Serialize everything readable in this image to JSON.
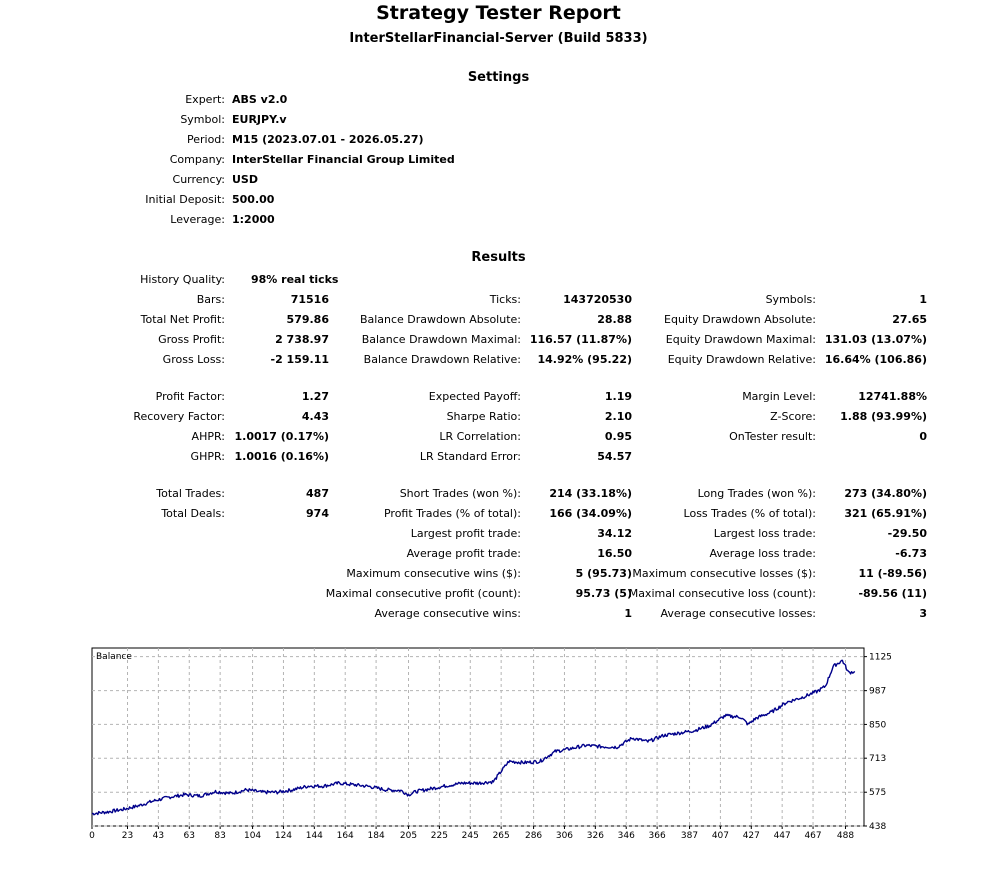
{
  "header": {
    "title": "Strategy Tester Report",
    "subtitle": "InterStellarFinancial-Server (Build 5833)"
  },
  "settings": {
    "heading": "Settings",
    "rows": [
      {
        "label": "Expert:",
        "value": "ABS v2.0"
      },
      {
        "label": "Symbol:",
        "value": "EURJPY.v"
      },
      {
        "label": "Period:",
        "value": "M15 (2023.07.01 - 2026.05.27)"
      },
      {
        "label": "Company:",
        "value": "InterStellar Financial Group Limited"
      },
      {
        "label": "Currency:",
        "value": "USD"
      },
      {
        "label": "Initial Deposit:",
        "value": "500.00"
      },
      {
        "label": "Leverage:",
        "value": "1:2000"
      }
    ]
  },
  "results": {
    "heading": "Results",
    "history_quality": {
      "label": "History Quality:",
      "value": "98% real ticks"
    },
    "col1": [
      {
        "label": "Bars:",
        "value": "71516"
      },
      {
        "label": "Total Net Profit:",
        "value": "579.86"
      },
      {
        "label": "Gross Profit:",
        "value": "2 738.97"
      },
      {
        "label": "Gross Loss:",
        "value": "-2 159.11"
      },
      {
        "label": "Profit Factor:",
        "value": "1.27"
      },
      {
        "label": "Recovery Factor:",
        "value": "4.43"
      },
      {
        "label": "AHPR:",
        "value": "1.0017 (0.17%)"
      },
      {
        "label": "GHPR:",
        "value": "1.0016 (0.16%)"
      },
      {
        "label": "Total Trades:",
        "value": "487"
      },
      {
        "label": "Total Deals:",
        "value": "974"
      }
    ],
    "col2": [
      {
        "label": "Ticks:",
        "value": "143720530"
      },
      {
        "label": "Balance Drawdown Absolute:",
        "value": "28.88"
      },
      {
        "label": "Balance Drawdown Maximal:",
        "value": "116.57 (11.87%)"
      },
      {
        "label": "Balance Drawdown Relative:",
        "value": "14.92% (95.22)"
      },
      {
        "label": "Expected Payoff:",
        "value": "1.19"
      },
      {
        "label": "Sharpe Ratio:",
        "value": "2.10"
      },
      {
        "label": "LR Correlation:",
        "value": "0.95"
      },
      {
        "label": "LR Standard Error:",
        "value": "54.57"
      },
      {
        "label": "Short Trades (won %):",
        "value": "214 (33.18%)"
      },
      {
        "label": "Profit Trades (% of total):",
        "value": "166 (34.09%)"
      },
      {
        "label": "Largest profit trade:",
        "value": "34.12"
      },
      {
        "label": "Average profit trade:",
        "value": "16.50"
      },
      {
        "label": "Maximum consecutive wins ($):",
        "value": "5 (95.73)"
      },
      {
        "label": "Maximal consecutive profit (count):",
        "value": "95.73 (5)"
      },
      {
        "label": "Average consecutive wins:",
        "value": "1"
      }
    ],
    "col3": [
      {
        "label": "Symbols:",
        "value": "1"
      },
      {
        "label": "Equity Drawdown Absolute:",
        "value": "27.65"
      },
      {
        "label": "Equity Drawdown Maximal:",
        "value": "131.03 (13.07%)"
      },
      {
        "label": "Equity Drawdown Relative:",
        "value": "16.64% (106.86)"
      },
      {
        "label": "Margin Level:",
        "value": "12741.88%"
      },
      {
        "label": "Z-Score:",
        "value": "1.88 (93.99%)"
      },
      {
        "label": "OnTester result:",
        "value": "0"
      },
      {
        "label": "Long Trades (won %):",
        "value": "273 (34.80%)"
      },
      {
        "label": "Loss Trades (% of total):",
        "value": "321 (65.91%)"
      },
      {
        "label": "Largest loss trade:",
        "value": "-29.50"
      },
      {
        "label": "Average loss trade:",
        "value": "-6.73"
      },
      {
        "label": "Maximum consecutive losses ($):",
        "value": "11 (-89.56)"
      },
      {
        "label": "Maximal consecutive loss (count):",
        "value": "-89.56 (11)"
      },
      {
        "label": "Average consecutive losses:",
        "value": "3"
      }
    ]
  },
  "chart_data": {
    "type": "line",
    "title": "Balance",
    "line_color": "#00008b",
    "grid": true,
    "xlim": [
      0,
      500
    ],
    "ylim": [
      438,
      1160
    ],
    "x_ticks": [
      "0",
      "23",
      "43",
      "63",
      "83",
      "104",
      "124",
      "144",
      "164",
      "184",
      "205",
      "225",
      "245",
      "265",
      "286",
      "306",
      "326",
      "346",
      "366",
      "387",
      "407",
      "427",
      "447",
      "467",
      "488"
    ],
    "y_ticks": [
      "438",
      "575",
      "713",
      "850",
      "987",
      "1125"
    ],
    "series": [
      {
        "x": [
          0,
          10,
          20,
          30,
          40,
          50,
          60,
          70,
          80,
          90,
          100,
          110,
          120,
          130,
          140,
          150,
          160,
          170,
          180,
          190,
          200,
          205,
          210,
          220,
          230,
          240,
          250,
          260,
          265,
          270,
          280,
          290,
          300,
          310,
          320,
          330,
          340,
          350,
          360,
          370,
          380,
          390,
          400,
          410,
          420,
          425,
          430,
          440,
          450,
          460,
          470,
          475,
          480,
          486,
          490,
          494
        ],
        "y": [
          488,
          495,
          505,
          520,
          540,
          555,
          565,
          560,
          578,
          570,
          585,
          575,
          575,
          585,
          600,
          600,
          612,
          605,
          598,
          585,
          582,
          565,
          578,
          590,
          602,
          612,
          612,
          618,
          660,
          700,
          695,
          700,
          740,
          752,
          765,
          760,
          758,
          795,
          780,
          805,
          815,
          825,
          845,
          885,
          880,
          850,
          875,
          900,
          940,
          960,
          985,
          1005,
          1085,
          1110,
          1060,
          1065
        ]
      }
    ]
  }
}
